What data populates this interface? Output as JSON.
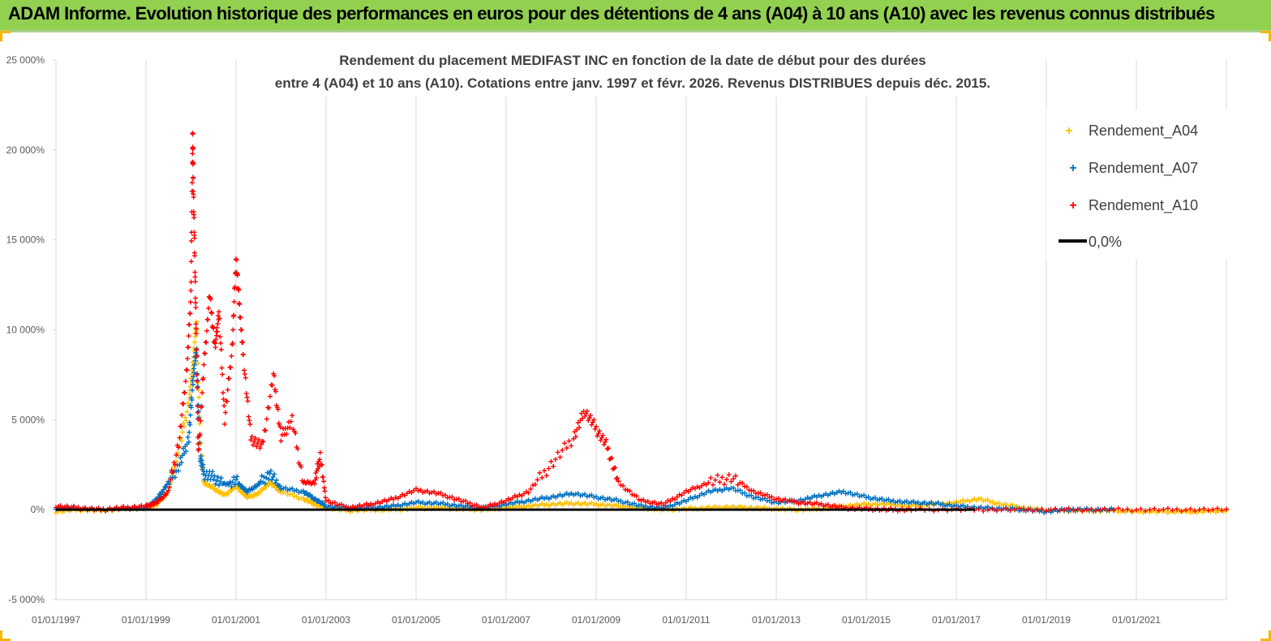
{
  "banner": {
    "text": "ADAM Informe. Evolution historique des performances en euros pour des détentions de 4 ans (A04) à 10 ans (A10) avec les revenus connus distribués"
  },
  "colors": {
    "banner_bg": "#92d050",
    "frame_accent": "#f5b800",
    "A04": "#ffc000",
    "A07": "#0070c0",
    "A10": "#ff0000",
    "zero_line": "#000000"
  },
  "chart_data": {
    "type": "scatter",
    "title_lines": [
      "Rendement du placement MEDIFAST INC en fonction de la date de début pour des durées",
      "entre 4 (A04) et 10 ans (A10).  Cotations entre janv. 1997 et févr. 2026. Revenus DISTRIBUES depuis déc. 2015."
    ],
    "xlabel": "",
    "ylabel": "",
    "x_range": [
      "1997-01-01",
      "2023-01-01"
    ],
    "x_ticks": [
      "01/01/1997",
      "01/01/1999",
      "01/01/2001",
      "01/01/2003",
      "01/01/2005",
      "01/01/2007",
      "01/01/2009",
      "01/01/2011",
      "01/01/2013",
      "01/01/2015",
      "01/01/2017",
      "01/01/2019",
      "01/01/2021"
    ],
    "ylim": [
      -5000,
      25000
    ],
    "y_ticks": [
      -5000,
      0,
      5000,
      10000,
      15000,
      20000,
      25000
    ],
    "y_tick_labels": [
      "-5 000%",
      "0%",
      "5 000%",
      "10 000%",
      "15 000%",
      "20 000%",
      "25 000%"
    ],
    "grid": "vertical",
    "legend_position": "top-right",
    "legend": [
      {
        "key": "A04",
        "label": "Rendement_A04",
        "marker": "+"
      },
      {
        "key": "A07",
        "label": "Rendement_A07",
        "marker": "+"
      },
      {
        "key": "A10",
        "label": "Rendement_A10",
        "marker": "+"
      },
      {
        "key": "zero",
        "label": "0,0%",
        "marker": "line"
      }
    ],
    "series": [
      {
        "name": "Rendement_A04",
        "key": "A04",
        "points": [
          [
            "1997-01-01",
            -100
          ],
          [
            "1997-07-01",
            0
          ],
          [
            "1998-01-01",
            -50
          ],
          [
            "1998-07-01",
            50
          ],
          [
            "1999-01-01",
            100
          ],
          [
            "1999-04-01",
            300
          ],
          [
            "1999-07-01",
            1000
          ],
          [
            "1999-10-01",
            3500
          ],
          [
            "1999-12-15",
            6000
          ],
          [
            "2000-01-15",
            8000
          ],
          [
            "2000-02-15",
            10500
          ],
          [
            "2000-03-15",
            4000
          ],
          [
            "2000-04-15",
            1500
          ],
          [
            "2000-07-01",
            1200
          ],
          [
            "2000-10-01",
            800
          ],
          [
            "2001-01-01",
            1300
          ],
          [
            "2001-04-01",
            700
          ],
          [
            "2001-07-01",
            900
          ],
          [
            "2001-10-01",
            1500
          ],
          [
            "2002-01-01",
            1000
          ],
          [
            "2002-07-01",
            600
          ],
          [
            "2002-10-01",
            300
          ],
          [
            "2003-01-01",
            100
          ],
          [
            "2003-07-01",
            -50
          ],
          [
            "2004-01-01",
            0
          ],
          [
            "2004-07-01",
            0
          ],
          [
            "2005-01-01",
            100
          ],
          [
            "2005-07-01",
            100
          ],
          [
            "2006-01-01",
            50
          ],
          [
            "2006-07-01",
            0
          ],
          [
            "2007-01-01",
            100
          ],
          [
            "2007-07-01",
            200
          ],
          [
            "2008-01-01",
            300
          ],
          [
            "2008-07-01",
            350
          ],
          [
            "2009-01-01",
            300
          ],
          [
            "2009-07-01",
            200
          ],
          [
            "2010-01-01",
            100
          ],
          [
            "2010-07-01",
            0
          ],
          [
            "2011-01-01",
            50
          ],
          [
            "2011-07-01",
            100
          ],
          [
            "2012-01-01",
            150
          ],
          [
            "2012-07-01",
            100
          ],
          [
            "2013-01-01",
            50
          ],
          [
            "2013-07-01",
            0
          ],
          [
            "2014-01-01",
            50
          ],
          [
            "2014-07-01",
            200
          ],
          [
            "2015-01-01",
            300
          ],
          [
            "2015-07-01",
            300
          ],
          [
            "2016-01-01",
            200
          ],
          [
            "2016-07-01",
            300
          ],
          [
            "2017-01-01",
            400
          ],
          [
            "2017-07-01",
            600
          ],
          [
            "2018-01-01",
            300
          ],
          [
            "2018-07-01",
            100
          ],
          [
            "2019-01-01",
            -50
          ],
          [
            "2019-07-01",
            -50
          ],
          [
            "2020-01-01",
            -50
          ],
          [
            "2020-07-01",
            -50
          ],
          [
            "2021-01-01",
            -100
          ],
          [
            "2021-07-01",
            -100
          ],
          [
            "2022-01-01",
            -100
          ],
          [
            "2022-06-01",
            -100
          ],
          [
            "2023-01-01",
            -50
          ]
        ]
      },
      {
        "name": "Rendement_A07",
        "key": "A07",
        "points": [
          [
            "1997-01-01",
            100
          ],
          [
            "1997-07-01",
            100
          ],
          [
            "1998-01-01",
            0
          ],
          [
            "1998-07-01",
            100
          ],
          [
            "1999-01-01",
            100
          ],
          [
            "1999-04-01",
            600
          ],
          [
            "1999-07-01",
            1500
          ],
          [
            "1999-10-01",
            2500
          ],
          [
            "1999-12-15",
            4000
          ],
          [
            "2000-01-15",
            7000
          ],
          [
            "2000-02-15",
            9000
          ],
          [
            "2000-03-15",
            3000
          ],
          [
            "2000-04-15",
            2000
          ],
          [
            "2000-07-01",
            1800
          ],
          [
            "2000-10-01",
            1400
          ],
          [
            "2001-01-01",
            1600
          ],
          [
            "2001-04-01",
            1000
          ],
          [
            "2001-07-01",
            1400
          ],
          [
            "2001-10-01",
            2000
          ],
          [
            "2002-01-01",
            1200
          ],
          [
            "2002-07-01",
            1000
          ],
          [
            "2002-10-01",
            600
          ],
          [
            "2003-01-01",
            200
          ],
          [
            "2003-07-01",
            100
          ],
          [
            "2004-01-01",
            100
          ],
          [
            "2004-07-01",
            200
          ],
          [
            "2005-01-01",
            400
          ],
          [
            "2005-07-01",
            350
          ],
          [
            "2006-01-01",
            200
          ],
          [
            "2006-07-01",
            100
          ],
          [
            "2007-01-01",
            300
          ],
          [
            "2007-07-01",
            500
          ],
          [
            "2008-01-01",
            700
          ],
          [
            "2008-07-01",
            900
          ],
          [
            "2009-01-01",
            700
          ],
          [
            "2009-07-01",
            500
          ],
          [
            "2010-01-01",
            200
          ],
          [
            "2010-07-01",
            100
          ],
          [
            "2011-01-01",
            500
          ],
          [
            "2011-07-01",
            1000
          ],
          [
            "2012-01-01",
            1200
          ],
          [
            "2012-07-01",
            700
          ],
          [
            "2013-01-01",
            400
          ],
          [
            "2013-07-01",
            500
          ],
          [
            "2014-01-01",
            800
          ],
          [
            "2014-07-01",
            1000
          ],
          [
            "2015-01-01",
            700
          ],
          [
            "2015-07-01",
            500
          ],
          [
            "2016-01-01",
            400
          ],
          [
            "2016-07-01",
            350
          ],
          [
            "2017-01-01",
            200
          ],
          [
            "2017-07-01",
            100
          ],
          [
            "2018-01-01",
            50
          ],
          [
            "2018-07-01",
            0
          ],
          [
            "2019-01-01",
            -100
          ],
          [
            "2019-07-01",
            0
          ],
          [
            "2020-01-01",
            0
          ],
          [
            "2020-07-01",
            0
          ]
        ]
      },
      {
        "name": "Rendement_A10",
        "key": "A10",
        "points": [
          [
            "1997-01-01",
            200
          ],
          [
            "1997-07-01",
            100
          ],
          [
            "1998-01-01",
            0
          ],
          [
            "1998-07-01",
            100
          ],
          [
            "1999-01-01",
            200
          ],
          [
            "1999-04-01",
            400
          ],
          [
            "1999-07-01",
            1000
          ],
          [
            "1999-10-01",
            4000
          ],
          [
            "1999-12-01",
            8000
          ],
          [
            "2000-01-01",
            12000
          ],
          [
            "2000-01-15",
            21000
          ],
          [
            "2000-01-20",
            18000
          ],
          [
            "2000-02-01",
            14000
          ],
          [
            "2000-02-15",
            9000
          ],
          [
            "2000-03-01",
            3000
          ],
          [
            "2000-04-15",
            8000
          ],
          [
            "2000-06-01",
            12000
          ],
          [
            "2000-07-15",
            9000
          ],
          [
            "2000-08-15",
            11000
          ],
          [
            "2000-10-01",
            5000
          ],
          [
            "2000-12-01",
            9000
          ],
          [
            "2001-01-01",
            14000
          ],
          [
            "2001-02-01",
            11000
          ],
          [
            "2001-03-01",
            8500
          ],
          [
            "2001-05-01",
            4000
          ],
          [
            "2001-08-01",
            3500
          ],
          [
            "2001-11-01",
            7500
          ],
          [
            "2002-01-01",
            4000
          ],
          [
            "2002-04-01",
            5000
          ],
          [
            "2002-07-01",
            1500
          ],
          [
            "2002-10-01",
            1500
          ],
          [
            "2002-11-15",
            3000
          ],
          [
            "2003-01-01",
            500
          ],
          [
            "2003-07-01",
            100
          ],
          [
            "2004-01-01",
            300
          ],
          [
            "2004-07-01",
            600
          ],
          [
            "2005-01-01",
            1100
          ],
          [
            "2005-07-01",
            900
          ],
          [
            "2006-01-01",
            500
          ],
          [
            "2006-07-01",
            100
          ],
          [
            "2007-01-01",
            500
          ],
          [
            "2007-07-01",
            1000
          ],
          [
            "2008-01-01",
            2500
          ],
          [
            "2008-07-01",
            4000
          ],
          [
            "2008-10-01",
            5500
          ],
          [
            "2009-01-01",
            4500
          ],
          [
            "2009-04-01",
            3500
          ],
          [
            "2009-07-01",
            1500
          ],
          [
            "2010-01-01",
            500
          ],
          [
            "2010-07-01",
            300
          ],
          [
            "2011-01-01",
            1000
          ],
          [
            "2011-07-01",
            1500
          ],
          [
            "2012-01-01",
            1800
          ],
          [
            "2012-07-01",
            1000
          ],
          [
            "2013-01-01",
            600
          ],
          [
            "2013-07-01",
            400
          ],
          [
            "2014-01-01",
            300
          ],
          [
            "2014-07-01",
            100
          ],
          [
            "2015-01-01",
            50
          ],
          [
            "2015-07-01",
            0
          ],
          [
            "2016-01-01",
            0
          ],
          [
            "2017-01-01",
            0
          ],
          [
            "2018-01-01",
            0
          ],
          [
            "2019-01-01",
            0
          ],
          [
            "2020-01-01",
            0
          ],
          [
            "2021-01-01",
            0
          ],
          [
            "2022-01-01",
            0
          ],
          [
            "2023-01-01",
            0
          ]
        ]
      },
      {
        "name": "0,0%",
        "key": "zero",
        "points": [
          [
            "1997-01-01",
            0
          ],
          [
            "2023-01-01",
            0
          ]
        ]
      }
    ]
  }
}
